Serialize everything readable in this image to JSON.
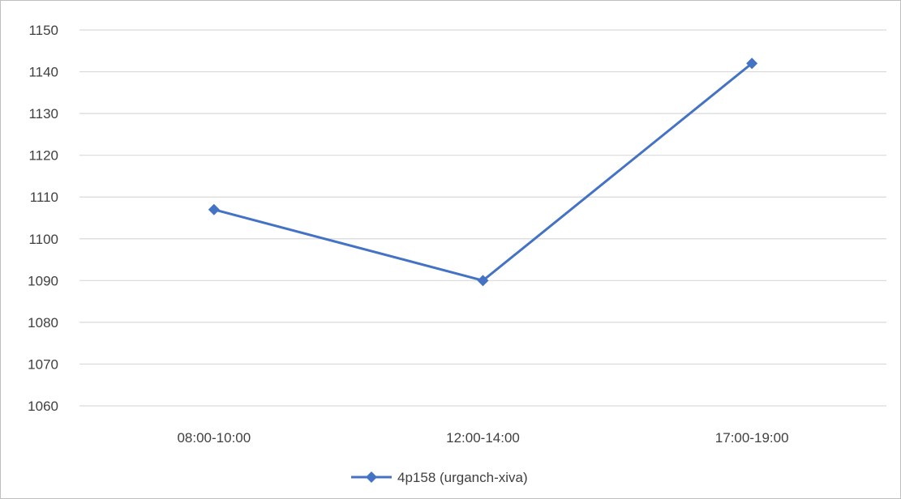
{
  "chart_data": {
    "type": "line",
    "title": "",
    "xlabel": "",
    "ylabel": "",
    "categories": [
      "08:00-10:00",
      "12:00-14:00",
      "17:00-19:00"
    ],
    "series": [
      {
        "name": "4p158 (urganch-xiva)",
        "values": [
          1107,
          1090,
          1142
        ]
      }
    ],
    "ylim": [
      1060,
      1150
    ],
    "yticks": [
      1060,
      1070,
      1080,
      1090,
      1100,
      1110,
      1120,
      1130,
      1140,
      1150
    ],
    "grid": true,
    "legend_position": "bottom",
    "colors": {
      "series": "#4472c4",
      "grid": "#d9d9d9",
      "text": "#404040"
    },
    "marker": "diamond"
  }
}
